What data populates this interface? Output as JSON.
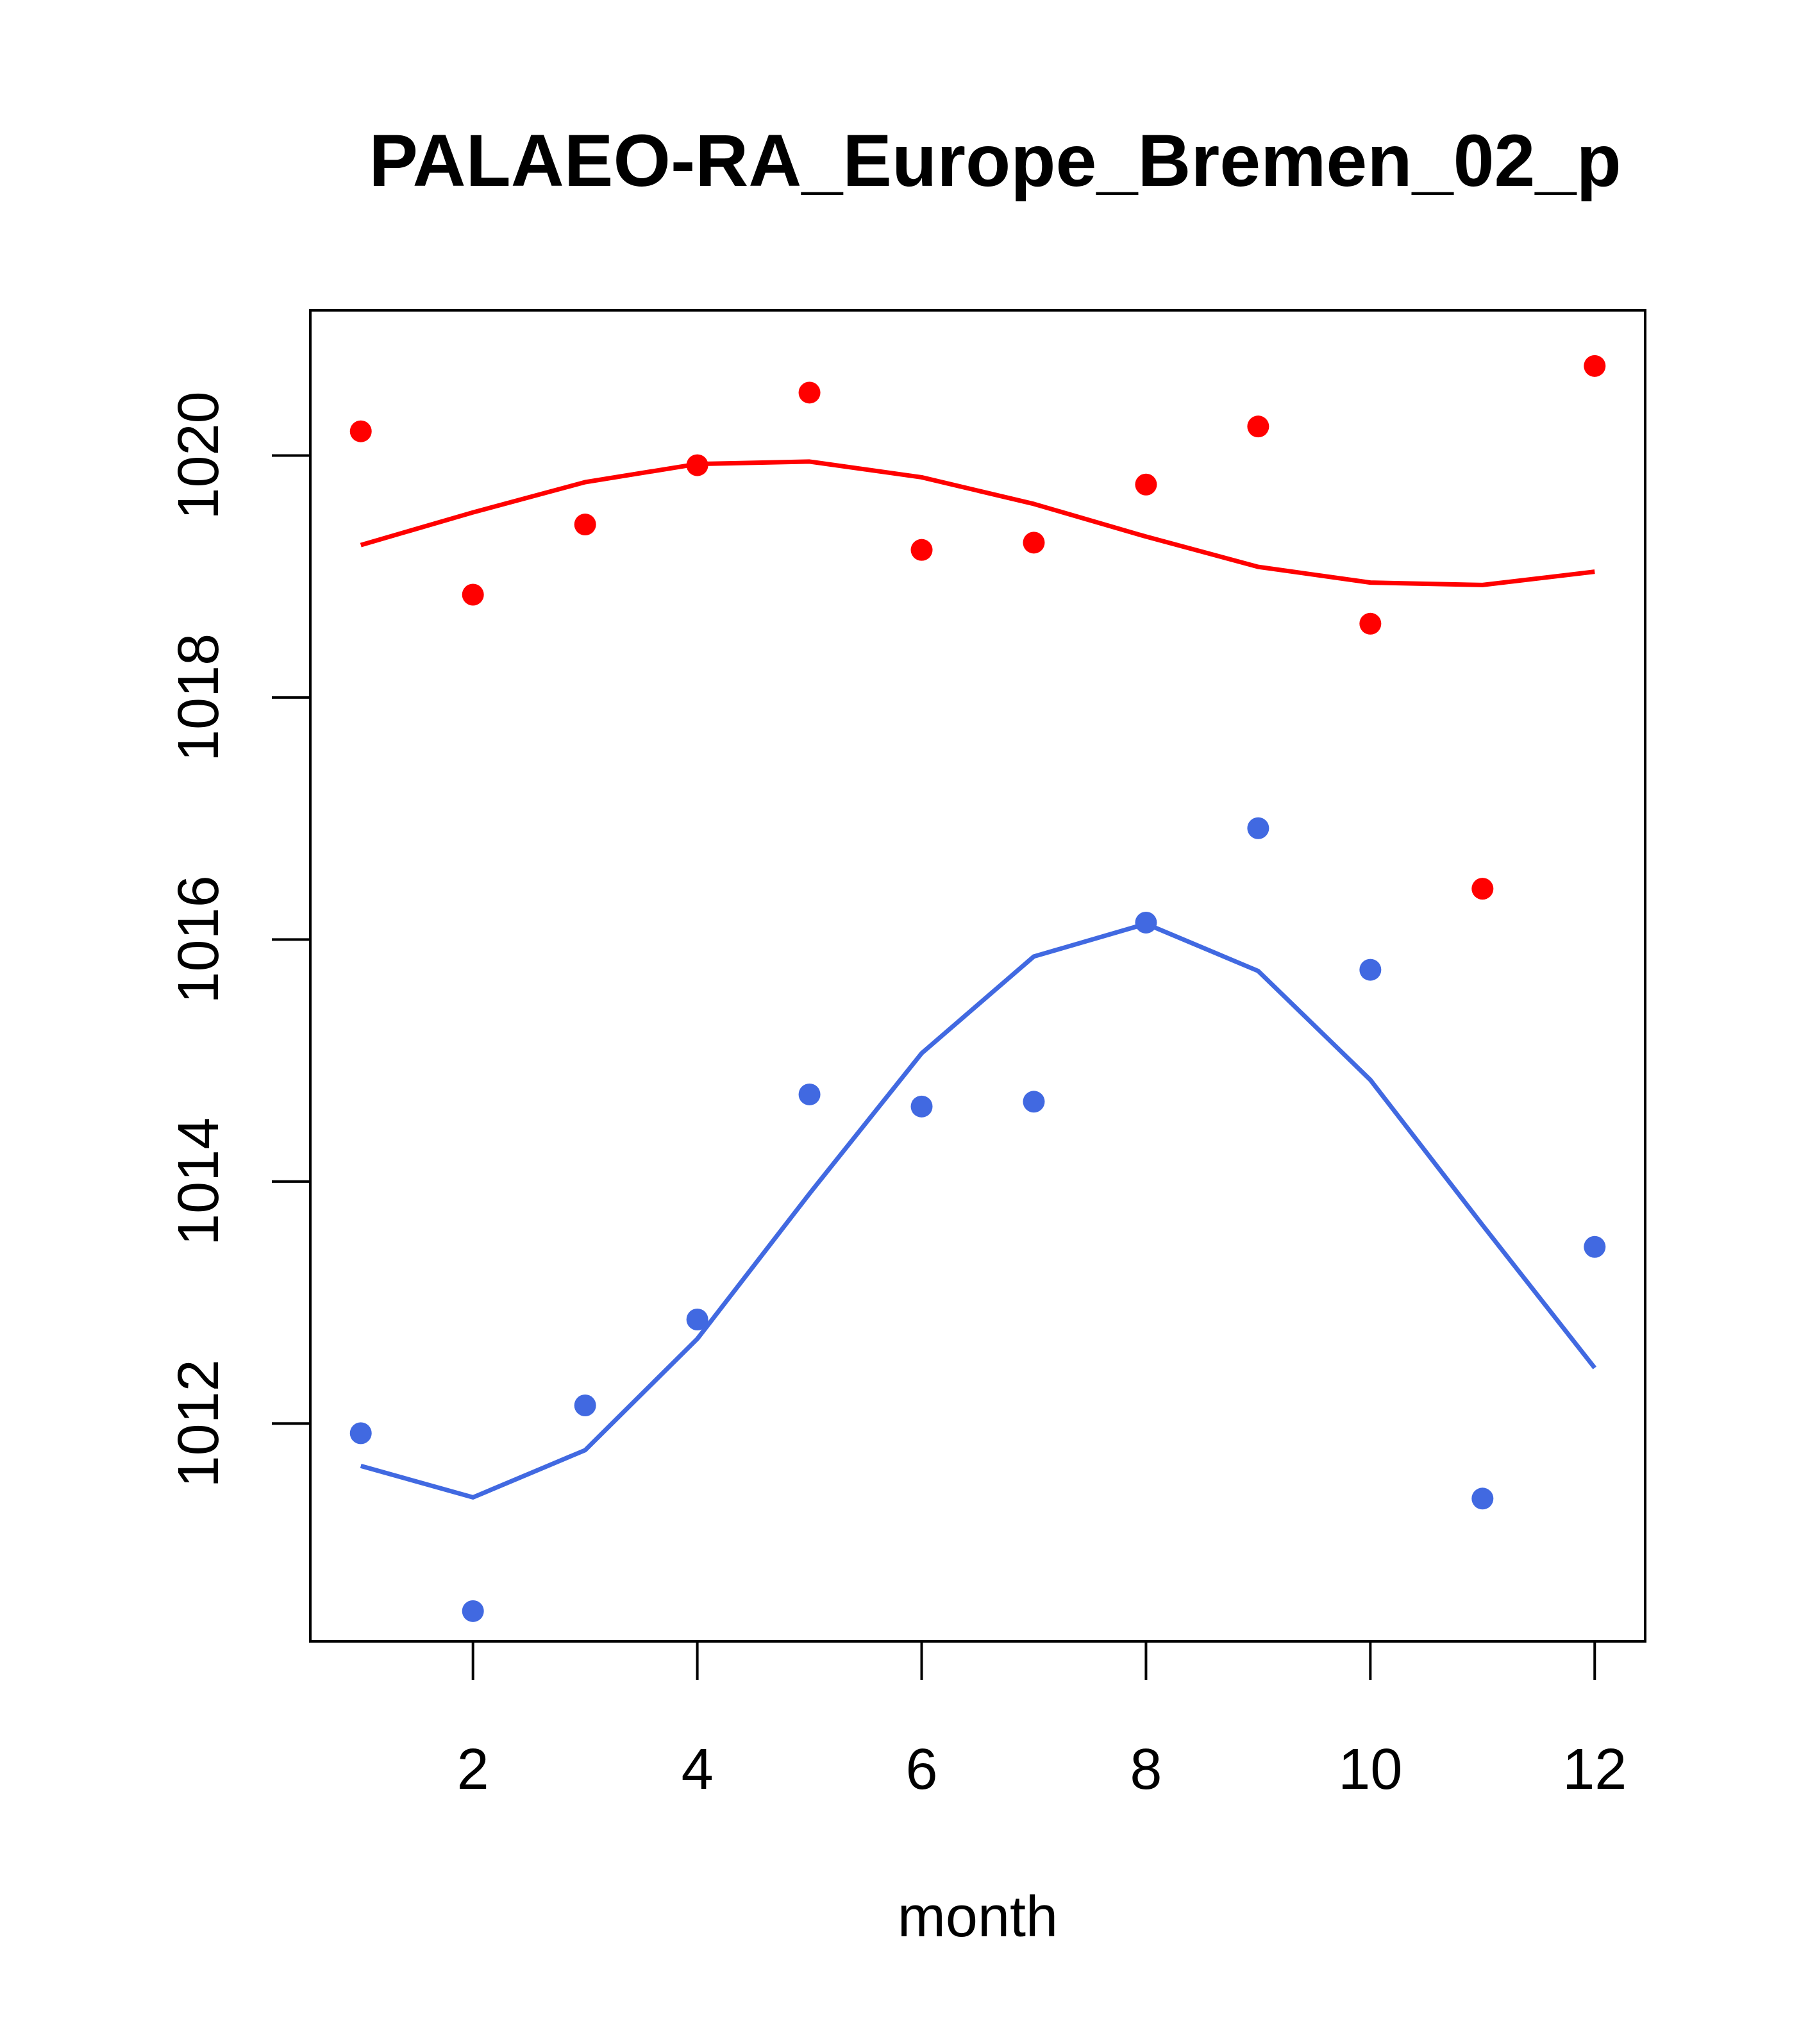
{
  "chart_data": {
    "type": "scatter",
    "title": "PALAEO-RA_Europe_Bremen_02_p",
    "xlabel": "month",
    "ylabel": "",
    "xlim": [
      0.55,
      12.45
    ],
    "ylim": [
      1010.2,
      1021.2
    ],
    "x_ticks": [
      2,
      4,
      6,
      8,
      10,
      12
    ],
    "y_ticks": [
      1012,
      1014,
      1016,
      1018,
      1020
    ],
    "x": [
      1,
      2,
      3,
      4,
      5,
      6,
      7,
      8,
      9,
      10,
      11,
      12
    ],
    "series": [
      {
        "color": "#ff0000",
        "points": [
          1020.2,
          1018.85,
          1019.43,
          1019.92,
          1020.52,
          1019.22,
          1019.28,
          1019.76,
          1020.24,
          1018.61,
          1016.42,
          1020.74
        ],
        "line": [
          1019.26,
          1019.53,
          1019.78,
          1019.93,
          1019.95,
          1019.82,
          1019.6,
          1019.33,
          1019.08,
          1018.95,
          1018.93,
          1019.04
        ]
      },
      {
        "color": "#4169e1",
        "points": [
          1011.92,
          1010.45,
          1012.15,
          1012.86,
          1014.72,
          1014.62,
          1014.66,
          1016.14,
          1016.92,
          1015.75,
          1011.38,
          1013.46
        ],
        "line": [
          1011.65,
          1011.39,
          1011.78,
          1012.7,
          1013.9,
          1015.06,
          1015.86,
          1016.13,
          1015.74,
          1014.84,
          1013.64,
          1012.46
        ]
      }
    ]
  }
}
